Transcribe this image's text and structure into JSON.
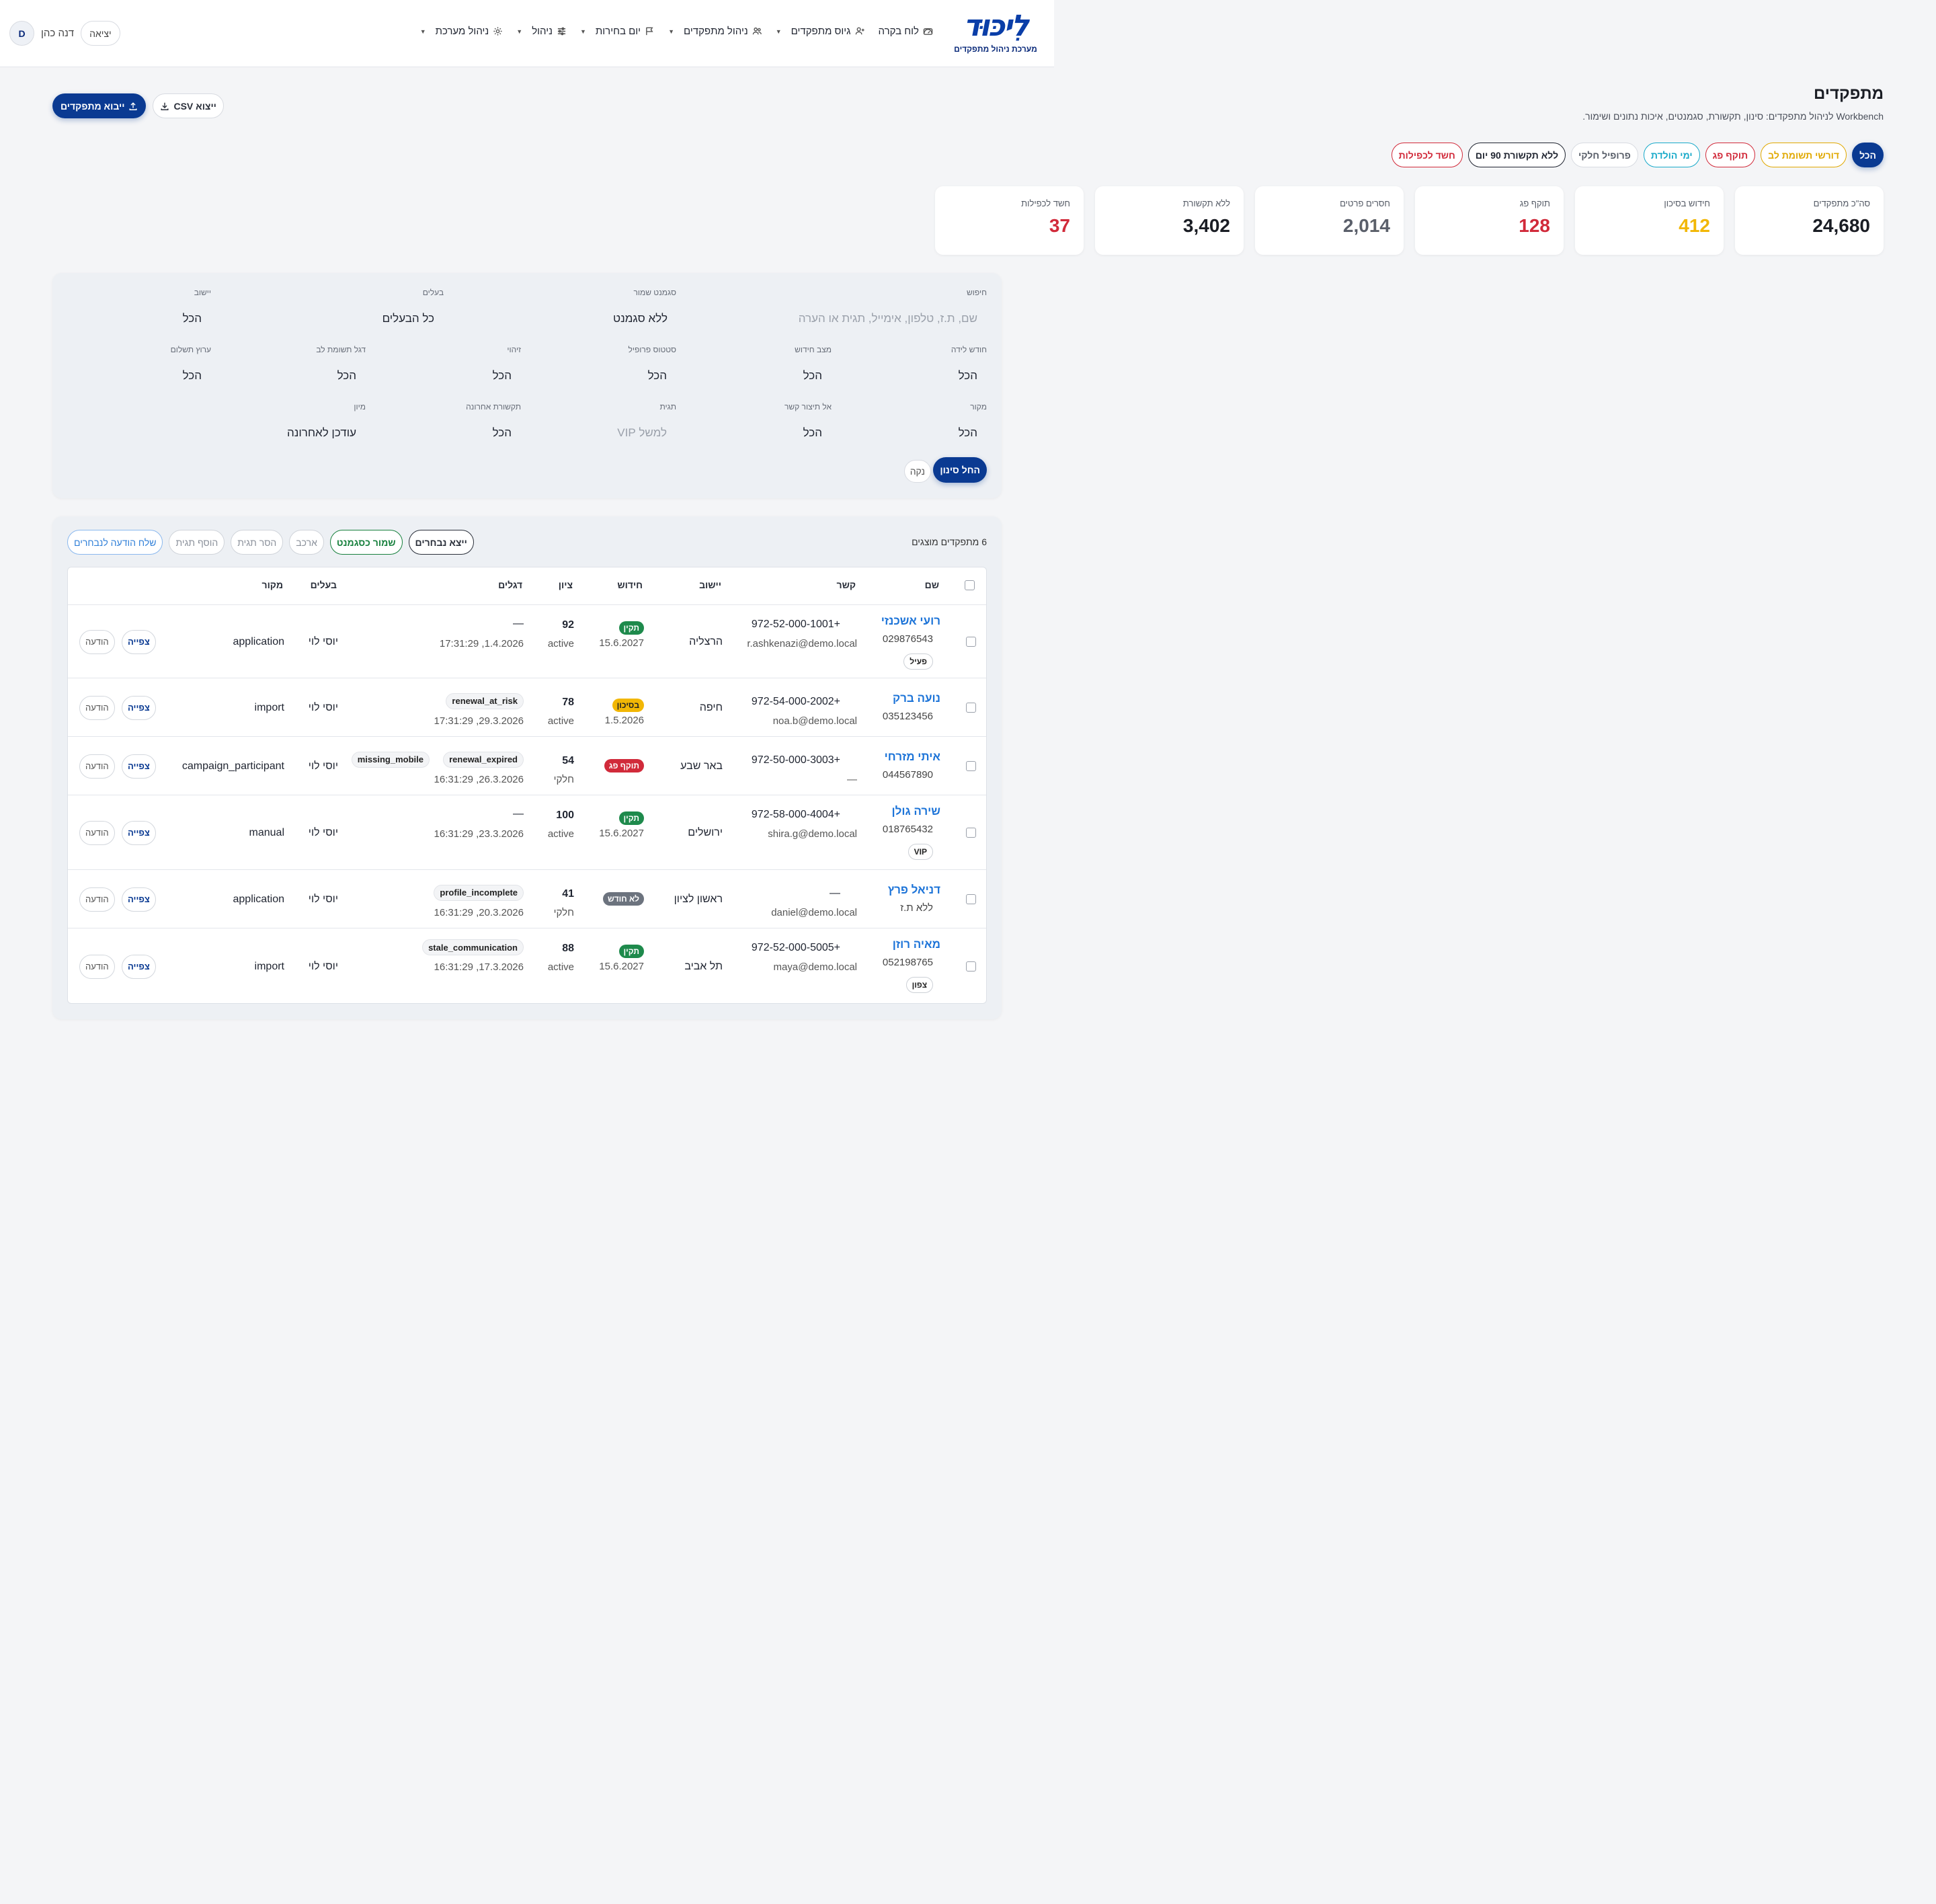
{
  "brand": {
    "logo_text": "לִיכּוּד",
    "subtitle": "מערכת ניהול מתפקדים"
  },
  "nav": [
    {
      "label": "לוח בקרה",
      "icon": "dashboard-icon",
      "has_caret": false
    },
    {
      "label": "גיוס מתפקדים",
      "icon": "user-plus-icon",
      "has_caret": true
    },
    {
      "label": "ניהול מתפקדים",
      "icon": "users-icon",
      "has_caret": true
    },
    {
      "label": "יום בחירות",
      "icon": "flag-icon",
      "has_caret": true
    },
    {
      "label": "ניהול",
      "icon": "sliders-icon",
      "has_caret": true
    },
    {
      "label": "ניהול מערכת",
      "icon": "gear-icon",
      "has_caret": true
    }
  ],
  "user": {
    "avatar": "D",
    "name": "דנה כהן",
    "logout": "יציאה"
  },
  "page": {
    "title": "מתפקדים",
    "subtitle": "Workbench לניהול מתפקדים: סינון, תקשורת, סגמנטים, איכות נתונים ושימור.",
    "import_label": "ייבוא מתפקדים",
    "export_label": "ייצוא CSV"
  },
  "pills": [
    {
      "label": "הכל",
      "color": "#ffffff",
      "active": true
    },
    {
      "label": "דורשי תשומת לב",
      "color": "#e0a800",
      "active": false
    },
    {
      "label": "תוקף פג",
      "color": "#d12a3a",
      "active": false
    },
    {
      "label": "ימי הולדת",
      "color": "#18a9c9",
      "active": false
    },
    {
      "label": "פרופיל חלקי",
      "color": "#555b66",
      "active": false
    },
    {
      "label": "ללא תקשורת 90 יום",
      "color": "#1f2430",
      "active": false
    },
    {
      "label": "חשד לכפילות",
      "color": "#d12a3a",
      "active": false
    }
  ],
  "stats": [
    {
      "label": "סה\"כ מתפקדים",
      "value": "24,680",
      "color": "#1a1d24"
    },
    {
      "label": "חידוש בסיכון",
      "value": "412",
      "color": "#f2b705"
    },
    {
      "label": "תוקף פג",
      "value": "128",
      "color": "#d12a3a"
    },
    {
      "label": "חסרים פרטים",
      "value": "2,014",
      "color": "#5a5f6a"
    },
    {
      "label": "ללא תקשורת",
      "value": "3,402",
      "color": "#1a1d24"
    },
    {
      "label": "חשד לכפילות",
      "value": "37",
      "color": "#d12a3a"
    }
  ],
  "filters": {
    "search": {
      "label": "חיפוש",
      "placeholder": "שם, ת.ז, טלפון, אימייל, תגית או הערה"
    },
    "segment": {
      "label": "סגמנט שמור",
      "value": "ללא סגמנט"
    },
    "owners": {
      "label": "בעלים",
      "value": "כל הבעלים"
    },
    "city": {
      "label": "יישוב",
      "value": "הכל"
    },
    "birth_month": {
      "label": "חודש לידה",
      "value": "הכל"
    },
    "renewal": {
      "label": "מצב חידוש",
      "value": "הכל"
    },
    "profile": {
      "label": "סטטוס פרופיל",
      "value": "הכל"
    },
    "identity": {
      "label": "זיהוי",
      "value": "הכל"
    },
    "attention": {
      "label": "דגל תשומת לב",
      "value": "הכל"
    },
    "payment": {
      "label": "ערוץ תשלום",
      "value": "הכל"
    },
    "source": {
      "label": "מקור",
      "value": "הכל"
    },
    "no_contact": {
      "label": "אל תיצור קשר",
      "value": "הכל"
    },
    "tag": {
      "label": "תגית",
      "placeholder": "למשל VIP"
    },
    "last_contact": {
      "label": "תקשורת אחרונה",
      "value": "הכל"
    },
    "sort": {
      "label": "מיון",
      "value": "עודכן לאחרונה"
    },
    "apply_label": "החל סינון",
    "clear_label": "נקה"
  },
  "results": {
    "count_text": "6 מתפקדים מוצגים",
    "bulk_actions": [
      "שלח הודעה לנבחרים",
      "הוסף תגית",
      "הסר תגית",
      "ארכב",
      "שמור כסגמנט",
      "ייצא נבחרים"
    ],
    "headers": [
      "שם",
      "קשר",
      "יישוב",
      "חידוש",
      "ציון",
      "דגלים",
      "בעלים",
      "מקור"
    ],
    "view_label": "צפייה",
    "message_label": "הודעה",
    "rows": [
      {
        "name": "רועי אשכנזי",
        "id": "029876543",
        "tag": "פעיל",
        "phone": "+972-52-000-1001",
        "email": "r.ashkenazi@demo.local",
        "city": "הרצליה",
        "status": "תקין",
        "status_color": "#1e8a4c",
        "renew_date": "15.6.2027",
        "score": "92",
        "score_sub": "active",
        "flags": [],
        "flag_dash": "—",
        "updated": "1.4.2026, 17:31:29",
        "owner": "יוסי לוי",
        "source": "application"
      },
      {
        "name": "נועה ברק",
        "id": "035123456",
        "tag": "",
        "phone": "+972-54-000-2002",
        "email": "noa.b@demo.local",
        "city": "חיפה",
        "status": "בסיכון",
        "status_color": "#f2b705",
        "renew_date": "1.5.2026",
        "score": "78",
        "score_sub": "active",
        "flags": [
          "renewal_at_risk"
        ],
        "flag_dash": "",
        "updated": "29.3.2026, 17:31:29",
        "owner": "יוסי לוי",
        "source": "import"
      },
      {
        "name": "איתי מזרחי",
        "id": "044567890",
        "tag": "",
        "phone": "+972-50-000-3003",
        "email": "—",
        "city": "באר שבע",
        "status": "תוקף פג",
        "status_color": "#d12a3a",
        "renew_date": "",
        "score": "54",
        "score_sub": "חלקי",
        "flags": [
          "renewal_expired",
          "missing_mobile"
        ],
        "flag_dash": "",
        "updated": "26.3.2026, 16:31:29",
        "owner": "יוסי לוי",
        "source": "campaign_participant"
      },
      {
        "name": "שירה גולן",
        "id": "018765432",
        "tag": "VIP",
        "phone": "+972-58-000-4004",
        "email": "shira.g@demo.local",
        "city": "ירושלים",
        "status": "תקין",
        "status_color": "#1e8a4c",
        "renew_date": "15.6.2027",
        "score": "100",
        "score_sub": "active",
        "flags": [],
        "flag_dash": "—",
        "updated": "23.3.2026, 16:31:29",
        "owner": "יוסי לוי",
        "source": "manual"
      },
      {
        "name": "דניאל פרץ",
        "id": "ללא ת.ז",
        "tag": "",
        "phone": "—",
        "email": "daniel@demo.local",
        "city": "ראשון לציון",
        "status": "לא חודש",
        "status_color": "#6c737e",
        "renew_date": "",
        "score": "41",
        "score_sub": "חלקי",
        "flags": [
          "profile_incomplete"
        ],
        "flag_dash": "",
        "updated": "20.3.2026, 16:31:29",
        "owner": "יוסי לוי",
        "source": "application"
      },
      {
        "name": "מאיה רוזן",
        "id": "052198765",
        "tag": "צפון",
        "phone": "+972-52-000-5005",
        "email": "maya@demo.local",
        "city": "תל אביב",
        "status": "תקין",
        "status_color": "#1e8a4c",
        "renew_date": "15.6.2027",
        "score": "88",
        "score_sub": "active",
        "flags": [
          "stale_communication"
        ],
        "flag_dash": "",
        "updated": "17.3.2026, 16:31:29",
        "owner": "יוסי לוי",
        "source": "import"
      }
    ]
  }
}
